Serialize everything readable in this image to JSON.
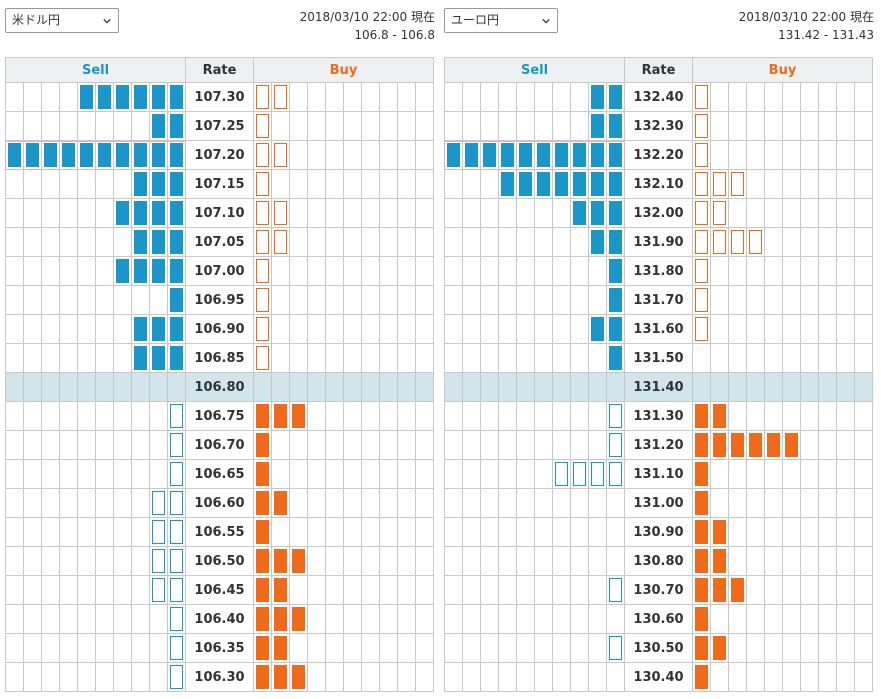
{
  "colors": {
    "sell": "#1a96c8",
    "buy": "#f06a1c",
    "current_row": "#d1e5ea",
    "header_bg": "#eef0f2"
  },
  "headers": {
    "sell": "Sell",
    "rate": "Rate",
    "buy": "Buy"
  },
  "panels": [
    {
      "pair": "米ドル円",
      "timestamp": "2018/03/10 22:00 現在",
      "range": "106.8 - 106.8",
      "current_rate": "106.80",
      "highlight_rate": "107.20",
      "rows": [
        {
          "rate": "107.30",
          "sell": 6,
          "buy": 2
        },
        {
          "rate": "107.25",
          "sell": 2,
          "buy": 1
        },
        {
          "rate": "107.20",
          "sell": 10,
          "buy": 2
        },
        {
          "rate": "107.15",
          "sell": 3,
          "buy": 1
        },
        {
          "rate": "107.10",
          "sell": 4,
          "buy": 2
        },
        {
          "rate": "107.05",
          "sell": 3,
          "buy": 2
        },
        {
          "rate": "107.00",
          "sell": 4,
          "buy": 1
        },
        {
          "rate": "106.95",
          "sell": 1,
          "buy": 1
        },
        {
          "rate": "106.90",
          "sell": 3,
          "buy": 1
        },
        {
          "rate": "106.85",
          "sell": 3,
          "buy": 1
        },
        {
          "rate": "106.80",
          "sell": 0,
          "buy": 0
        },
        {
          "rate": "106.75",
          "sell": 1,
          "buy": 3
        },
        {
          "rate": "106.70",
          "sell": 1,
          "buy": 1
        },
        {
          "rate": "106.65",
          "sell": 1,
          "buy": 1
        },
        {
          "rate": "106.60",
          "sell": 2,
          "buy": 2
        },
        {
          "rate": "106.55",
          "sell": 2,
          "buy": 1
        },
        {
          "rate": "106.50",
          "sell": 2,
          "buy": 3
        },
        {
          "rate": "106.45",
          "sell": 2,
          "buy": 2
        },
        {
          "rate": "106.40",
          "sell": 1,
          "buy": 3
        },
        {
          "rate": "106.35",
          "sell": 1,
          "buy": 2
        },
        {
          "rate": "106.30",
          "sell": 1,
          "buy": 3
        }
      ]
    },
    {
      "pair": "ユーロ円",
      "timestamp": "2018/03/10 22:00 現在",
      "range": "131.42 - 131.43",
      "current_rate": "131.40",
      "highlight_rate": "132.20",
      "rows": [
        {
          "rate": "132.40",
          "sell": 2,
          "buy": 1
        },
        {
          "rate": "132.30",
          "sell": 2,
          "buy": 1
        },
        {
          "rate": "132.20",
          "sell": 10,
          "buy": 1
        },
        {
          "rate": "132.10",
          "sell": 7,
          "buy": 3
        },
        {
          "rate": "132.00",
          "sell": 3,
          "buy": 2
        },
        {
          "rate": "131.90",
          "sell": 2,
          "buy": 4
        },
        {
          "rate": "131.80",
          "sell": 1,
          "buy": 1
        },
        {
          "rate": "131.70",
          "sell": 1,
          "buy": 1
        },
        {
          "rate": "131.60",
          "sell": 2,
          "buy": 1
        },
        {
          "rate": "131.50",
          "sell": 1,
          "buy": 0
        },
        {
          "rate": "131.40",
          "sell": 0,
          "buy": 0
        },
        {
          "rate": "131.30",
          "sell": 1,
          "buy": 2
        },
        {
          "rate": "131.20",
          "sell": 1,
          "buy": 6
        },
        {
          "rate": "131.10",
          "sell": 4,
          "buy": 1
        },
        {
          "rate": "131.00",
          "sell": 0,
          "buy": 1
        },
        {
          "rate": "130.90",
          "sell": 0,
          "buy": 2
        },
        {
          "rate": "130.80",
          "sell": 0,
          "buy": 2
        },
        {
          "rate": "130.70",
          "sell": 1,
          "buy": 3
        },
        {
          "rate": "130.60",
          "sell": 0,
          "buy": 1
        },
        {
          "rate": "130.50",
          "sell": 1,
          "buy": 2
        },
        {
          "rate": "130.40",
          "sell": 0,
          "buy": 1
        }
      ]
    }
  ]
}
